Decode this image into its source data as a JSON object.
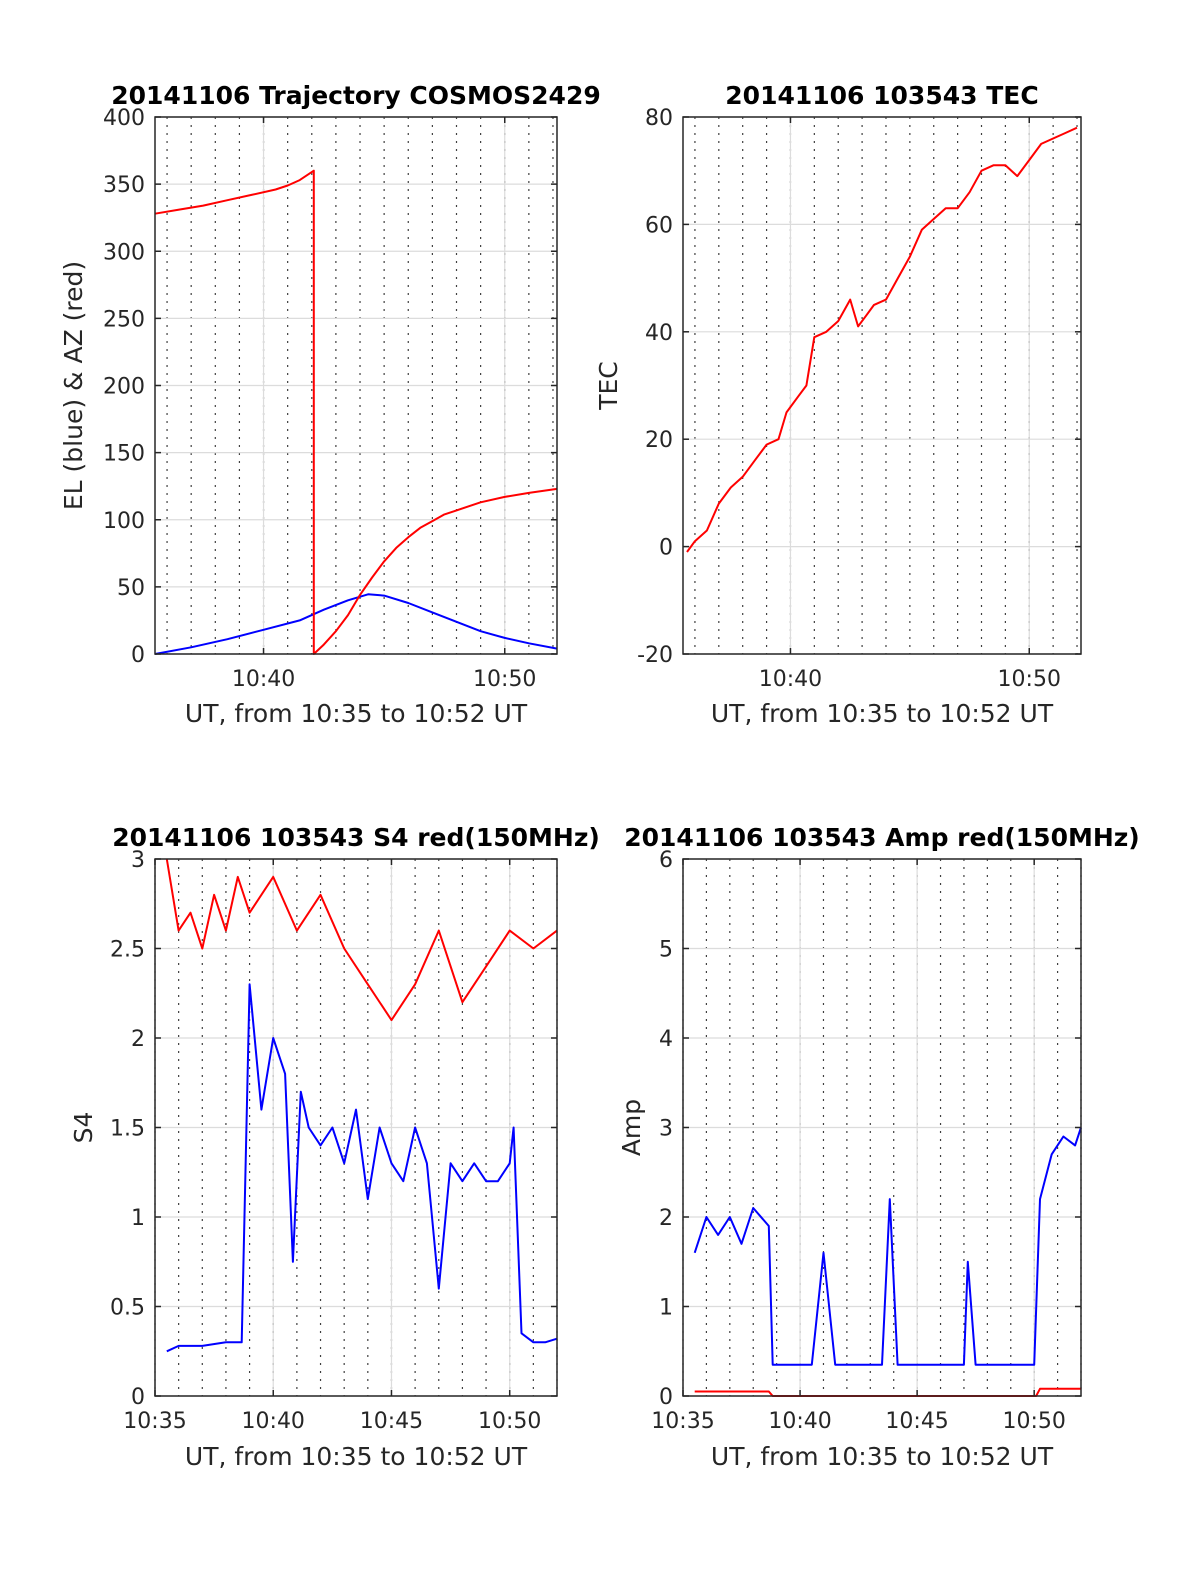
{
  "chart_data": [
    {
      "type": "line",
      "title": "20141106 Trajectory COSMOS2429",
      "xlabel": "UT, from 10:35 to 10:52 UT",
      "ylabel": "EL (blue) & AZ (red)",
      "xlim": [
        "10:35:30",
        "10:52:10"
      ],
      "ylim": [
        0,
        400
      ],
      "x_ticks": [
        "10:40",
        "10:50"
      ],
      "y_ticks": [
        "0",
        "50",
        "100",
        "150",
        "200",
        "250",
        "300",
        "350",
        "400"
      ],
      "grid": true,
      "series": [
        {
          "color": "#0000ff",
          "x": [
            "10:35:30",
            "10:37:00",
            "10:38:30",
            "10:40:00",
            "10:41:30",
            "10:42:30",
            "10:43:30",
            "10:44:20",
            "10:45:00",
            "10:46:00",
            "10:47:00",
            "10:48:00",
            "10:49:00",
            "10:50:00",
            "10:51:00",
            "10:52:10"
          ],
          "values": [
            0,
            5,
            11,
            18,
            25,
            33,
            40,
            44.5,
            43.5,
            38,
            31,
            24,
            17,
            12,
            8,
            4
          ]
        },
        {
          "color": "#ff0000",
          "x": [
            "10:35:30",
            "10:36:30",
            "10:37:30",
            "10:38:30",
            "10:39:30",
            "10:40:30",
            "10:41:00",
            "10:41:30",
            "10:42:05",
            "10:42:05",
            "10:42:30",
            "10:43:00",
            "10:43:30",
            "10:44:00",
            "10:44:30",
            "10:45:00",
            "10:45:30",
            "10:46:00",
            "10:46:30",
            "10:47:00",
            "10:47:30",
            "10:48:00",
            "10:49:00",
            "10:50:00",
            "10:51:00",
            "10:52:10"
          ],
          "values": [
            328,
            331,
            334,
            338,
            342,
            346,
            349,
            353,
            360,
            0,
            7,
            17,
            29,
            44,
            57,
            69,
            79,
            87,
            94,
            99,
            104,
            107,
            113,
            117,
            120,
            123
          ]
        }
      ]
    },
    {
      "type": "line",
      "title": "20141106 103543 TEC",
      "xlabel": "UT, from 10:35 to 10:52 UT",
      "ylabel": "TEC",
      "xlim": [
        "10:35:30",
        "10:52:10"
      ],
      "ylim": [
        -20,
        80
      ],
      "x_ticks": [
        "10:40",
        "10:50"
      ],
      "y_ticks": [
        "-20",
        "0",
        "20",
        "40",
        "60",
        "80"
      ],
      "grid": true,
      "series": [
        {
          "color": "#ff0000",
          "x": [
            "10:35:40",
            "10:36:00",
            "10:36:30",
            "10:37:00",
            "10:37:30",
            "10:38:00",
            "10:38:30",
            "10:39:00",
            "10:39:30",
            "10:39:50",
            "10:40:20",
            "10:40:40",
            "10:41:00",
            "10:41:30",
            "10:42:00",
            "10:42:30",
            "10:42:50",
            "10:43:10",
            "10:43:30",
            "10:44:00",
            "10:44:30",
            "10:45:00",
            "10:45:30",
            "10:46:00",
            "10:46:30",
            "10:47:00",
            "10:47:30",
            "10:48:00",
            "10:48:30",
            "10:49:00",
            "10:49:30",
            "10:50:00",
            "10:50:30",
            "10:51:00",
            "10:51:30",
            "10:52:00"
          ],
          "values": [
            -1,
            1,
            3,
            8,
            11,
            13,
            16,
            19,
            20,
            25,
            28,
            30,
            39,
            40,
            42,
            46,
            41,
            43,
            45,
            46,
            50,
            54,
            59,
            61,
            63,
            63,
            66,
            70,
            71,
            71,
            69,
            72,
            75,
            76,
            77,
            78
          ]
        }
      ]
    },
    {
      "type": "line",
      "title": "20141106 103543 S4 red(150MHz)",
      "xlabel": "UT, from 10:35 to 10:52 UT",
      "ylabel": "S4",
      "xlim": [
        "10:35",
        "10:52"
      ],
      "ylim": [
        0,
        3
      ],
      "x_ticks": [
        "10:35",
        "10:40",
        "10:45",
        "10:50"
      ],
      "y_ticks": [
        "0",
        "0.5",
        "1",
        "1.5",
        "2",
        "2.5",
        "3"
      ],
      "grid": true,
      "series": [
        {
          "color": "#ff0000",
          "x": [
            "10:35:30",
            "10:36:00",
            "10:36:30",
            "10:37:00",
            "10:37:30",
            "10:38:00",
            "10:38:30",
            "10:39:00",
            "10:40:00",
            "10:41:00",
            "10:42:00",
            "10:43:00",
            "10:44:00",
            "10:45:00",
            "10:46:00",
            "10:47:00",
            "10:48:00",
            "10:49:00",
            "10:50:00",
            "10:51:00",
            "10:52:00"
          ],
          "values": [
            3,
            2.6,
            2.7,
            2.5,
            2.8,
            2.6,
            2.9,
            2.7,
            2.9,
            2.6,
            2.8,
            2.5,
            2.3,
            2.1,
            2.3,
            2.6,
            2.2,
            2.4,
            2.6,
            2.5,
            2.6
          ]
        },
        {
          "color": "#0000ff",
          "x": [
            "10:35:30",
            "10:36:00",
            "10:37:00",
            "10:38:00",
            "10:38:40",
            "10:39:00",
            "10:39:30",
            "10:40:00",
            "10:40:30",
            "10:40:50",
            "10:41:10",
            "10:41:30",
            "10:42:00",
            "10:42:30",
            "10:43:00",
            "10:43:30",
            "10:44:00",
            "10:44:30",
            "10:45:00",
            "10:45:30",
            "10:46:00",
            "10:46:30",
            "10:47:00",
            "10:47:30",
            "10:48:00",
            "10:48:30",
            "10:49:00",
            "10:49:30",
            "10:50:00",
            "10:50:10",
            "10:50:30",
            "10:51:00",
            "10:51:30",
            "10:52:00"
          ],
          "values": [
            0.25,
            0.28,
            0.28,
            0.3,
            0.3,
            2.3,
            1.6,
            2.0,
            1.8,
            0.75,
            1.7,
            1.5,
            1.4,
            1.5,
            1.3,
            1.6,
            1.1,
            1.5,
            1.3,
            1.2,
            1.5,
            1.3,
            0.6,
            1.3,
            1.2,
            1.3,
            1.2,
            1.2,
            1.3,
            1.5,
            0.35,
            0.3,
            0.3,
            0.32
          ]
        }
      ]
    },
    {
      "type": "line",
      "title": "20141106 103543 Amp red(150MHz)",
      "xlabel": "UT, from 10:35 to 10:52 UT",
      "ylabel": "Amp",
      "xlim": [
        "10:35",
        "10:52"
      ],
      "ylim": [
        0,
        6
      ],
      "x_ticks": [
        "10:35",
        "10:40",
        "10:45",
        "10:50"
      ],
      "y_ticks": [
        "0",
        "1",
        "2",
        "3",
        "4",
        "5",
        "6"
      ],
      "grid": true,
      "series": [
        {
          "color": "#ff0000",
          "x": [
            "10:35:30",
            "10:36:30",
            "10:37:30",
            "10:38:40",
            "10:38:50",
            "10:50:05",
            "10:50:15",
            "10:51:00",
            "10:52:00"
          ],
          "values": [
            0.05,
            0.05,
            0.05,
            0.05,
            0,
            0,
            0.08,
            0.08,
            0.08
          ]
        },
        {
          "color": "#0000ff",
          "x": [
            "10:35:30",
            "10:36:00",
            "10:36:30",
            "10:37:00",
            "10:37:30",
            "10:38:00",
            "10:38:40",
            "10:38:50",
            "10:39:30",
            "10:40:30",
            "10:41:00",
            "10:41:30",
            "10:42:30",
            "10:43:30",
            "10:43:50",
            "10:44:10",
            "10:45:00",
            "10:46:00",
            "10:47:00",
            "10:47:10",
            "10:47:30",
            "10:48:30",
            "10:49:30",
            "10:50:00",
            "10:50:15",
            "10:50:45",
            "10:51:15",
            "10:51:45",
            "10:52:00"
          ],
          "values": [
            1.6,
            2.0,
            1.8,
            2.0,
            1.7,
            2.1,
            1.9,
            0.35,
            0.35,
            0.35,
            1.6,
            0.35,
            0.35,
            0.35,
            2.2,
            0.35,
            0.35,
            0.35,
            0.35,
            1.5,
            0.35,
            0.35,
            0.35,
            0.35,
            2.2,
            2.7,
            2.9,
            2.8,
            3.0
          ]
        }
      ]
    }
  ]
}
